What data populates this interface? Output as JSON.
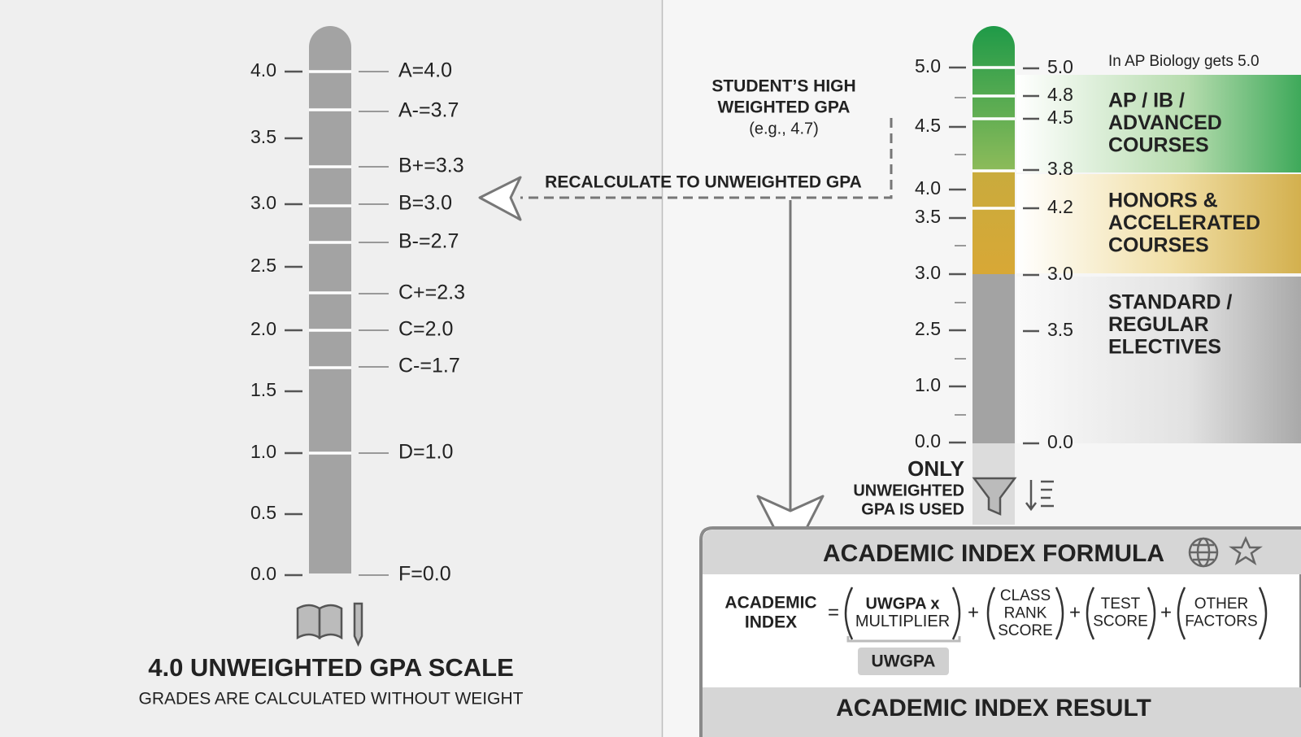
{
  "left_scale": {
    "axis_labels": [
      "4.0",
      "3.5",
      "3.0",
      "2.5",
      "2.0",
      "1.5",
      "1.0",
      "0.5",
      "0.0"
    ],
    "grade_labels": [
      "A=4.0",
      "A-=3.7",
      "B+=3.3",
      "B=3.0",
      "B-=2.7",
      "C+=2.3",
      "C=2.0",
      "C-=1.7",
      "D=1.0",
      "F=0.0"
    ],
    "title": "4.0 UNWEIGHTED GPA SCALE",
    "subtitle": "GRADES ARE CALCULATED WITHOUT WEIGHT"
  },
  "callout": {
    "title_lines": [
      "STUDENT’S HIGH",
      "WEIGHTED GPA"
    ],
    "example": "(e.g., 4.7)"
  },
  "arrow_label": "RECALCULATE TO UNWEIGHTED GPA",
  "right_scale": {
    "left_labels": [
      "5.0",
      "4.5",
      "4.0",
      "3.5",
      "3.0",
      "2.5",
      "1.0",
      "0.0"
    ],
    "right_labels": [
      "5.0",
      "4.8",
      "4.5",
      "3.8",
      "4.2",
      "3.0",
      "3.5",
      "0.0"
    ],
    "note": "In AP Biology gets 5.0",
    "bands": [
      {
        "lines": [
          "AP / IB /",
          "ADVANCED",
          "COURSES"
        ]
      },
      {
        "lines": [
          "HONORS &",
          "ACCELERATED",
          "COURSES"
        ]
      },
      {
        "lines": [
          "STANDARD /",
          "REGULAR",
          "ELECTIVES"
        ]
      }
    ]
  },
  "filter_note": {
    "emphasis": "ONLY",
    "lines": [
      "UNWEIGHTED",
      "GPA IS USED"
    ]
  },
  "formula": {
    "title": "ACADEMIC INDEX FORMULA",
    "lhs": [
      "ACADEMIC",
      "INDEX"
    ],
    "equals": "=",
    "plus": "+",
    "terms": [
      {
        "lines": [
          "UWGPA x",
          "MULTIPLIER"
        ]
      },
      {
        "lines": [
          "CLASS",
          "RANK",
          "SCORE"
        ]
      },
      {
        "lines": [
          "TEST",
          "SCORE"
        ]
      },
      {
        "lines": [
          "OTHER",
          "FACTORS"
        ]
      }
    ],
    "bracket_label": "UWGPA",
    "result": "ACADEMIC INDEX RESULT"
  }
}
